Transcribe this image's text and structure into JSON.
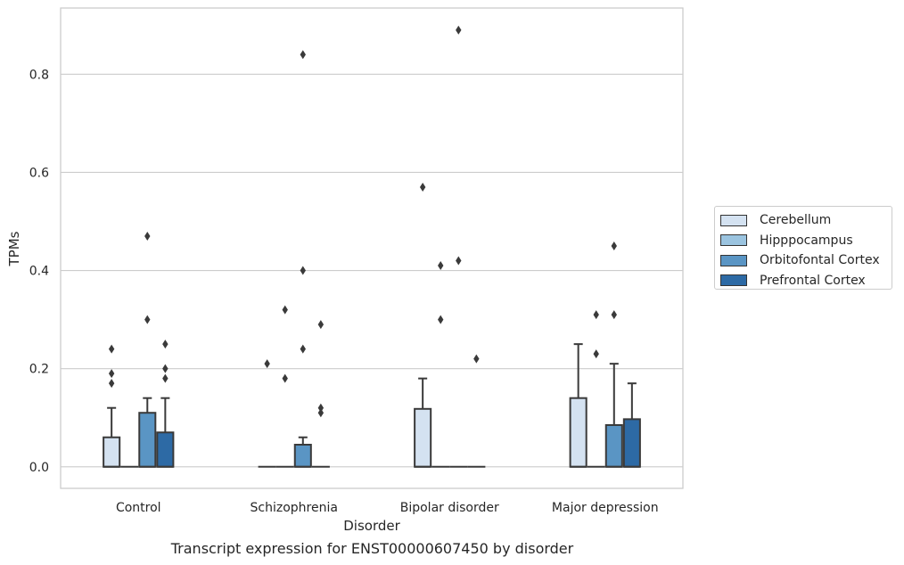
{
  "chart_data": {
    "type": "box",
    "xlabel": "Disorder",
    "ylabel": "TPMs",
    "caption": "Transcript expression for ENST00000607450 by disorder",
    "ylim": [
      -0.044,
      0.935
    ],
    "yticks": [
      0.0,
      0.2,
      0.4,
      0.6,
      0.8
    ],
    "ytick_labels": [
      "0.0",
      "0.2",
      "0.4",
      "0.6",
      "0.8"
    ],
    "grid": true,
    "legend_position": "right",
    "categories": [
      "Control",
      "Schizophrenia",
      "Bipolar disorder",
      "Major depression"
    ],
    "series": [
      {
        "name": "Cerebellum",
        "color": "#d4e2f1",
        "boxes": [
          {
            "q1": 0.0,
            "median": 0.0,
            "q3": 0.06,
            "whisker_low": 0.0,
            "whisker_high": 0.12,
            "outliers": [
              0.17,
              0.19,
              0.24
            ]
          },
          {
            "q1": 0.0,
            "median": 0.0,
            "q3": 0.0,
            "whisker_low": 0.0,
            "whisker_high": 0.0,
            "outliers": [
              0.21
            ]
          },
          {
            "q1": 0.0,
            "median": 0.0,
            "q3": 0.118,
            "whisker_low": 0.0,
            "whisker_high": 0.18,
            "outliers": [
              0.57
            ]
          },
          {
            "q1": 0.0,
            "median": 0.0,
            "q3": 0.14,
            "whisker_low": 0.0,
            "whisker_high": 0.25,
            "outliers": []
          }
        ]
      },
      {
        "name": "Hipppocampus",
        "color": "#9bc4e0",
        "boxes": [
          {
            "q1": 0.0,
            "median": 0.0,
            "q3": 0.0,
            "whisker_low": 0.0,
            "whisker_high": 0.0,
            "outliers": []
          },
          {
            "q1": 0.0,
            "median": 0.0,
            "q3": 0.0,
            "whisker_low": 0.0,
            "whisker_high": 0.0,
            "outliers": [
              0.18,
              0.32
            ]
          },
          {
            "q1": 0.0,
            "median": 0.0,
            "q3": 0.0,
            "whisker_low": 0.0,
            "whisker_high": 0.0,
            "outliers": [
              0.3,
              0.41
            ]
          },
          {
            "q1": 0.0,
            "median": 0.0,
            "q3": 0.0,
            "whisker_low": 0.0,
            "whisker_high": 0.0,
            "outliers": [
              0.23,
              0.31
            ]
          }
        ]
      },
      {
        "name": "Orbitofontal Cortex",
        "color": "#5a95c4",
        "boxes": [
          {
            "q1": 0.0,
            "median": 0.0,
            "q3": 0.11,
            "whisker_low": 0.0,
            "whisker_high": 0.14,
            "outliers": [
              0.3,
              0.47
            ]
          },
          {
            "q1": 0.0,
            "median": 0.0,
            "q3": 0.045,
            "whisker_low": 0.0,
            "whisker_high": 0.06,
            "outliers": [
              0.24,
              0.4,
              0.84
            ]
          },
          {
            "q1": 0.0,
            "median": 0.0,
            "q3": 0.0,
            "whisker_low": 0.0,
            "whisker_high": 0.0,
            "outliers": [
              0.42,
              0.89
            ]
          },
          {
            "q1": 0.0,
            "median": 0.0,
            "q3": 0.085,
            "whisker_low": 0.0,
            "whisker_high": 0.21,
            "outliers": [
              0.31,
              0.45
            ]
          }
        ]
      },
      {
        "name": "Prefrontal Cortex",
        "color": "#2d6aa5",
        "boxes": [
          {
            "q1": 0.0,
            "median": 0.0,
            "q3": 0.07,
            "whisker_low": 0.0,
            "whisker_high": 0.14,
            "outliers": [
              0.18,
              0.2,
              0.25
            ]
          },
          {
            "q1": 0.0,
            "median": 0.0,
            "q3": 0.0,
            "whisker_low": 0.0,
            "whisker_high": 0.0,
            "outliers": [
              0.11,
              0.12,
              0.29
            ]
          },
          {
            "q1": 0.0,
            "median": 0.0,
            "q3": 0.0,
            "whisker_low": 0.0,
            "whisker_high": 0.0,
            "outliers": [
              0.22
            ]
          },
          {
            "q1": 0.0,
            "median": 0.0,
            "q3": 0.097,
            "whisker_low": 0.0,
            "whisker_high": 0.17,
            "outliers": []
          }
        ]
      }
    ]
  }
}
